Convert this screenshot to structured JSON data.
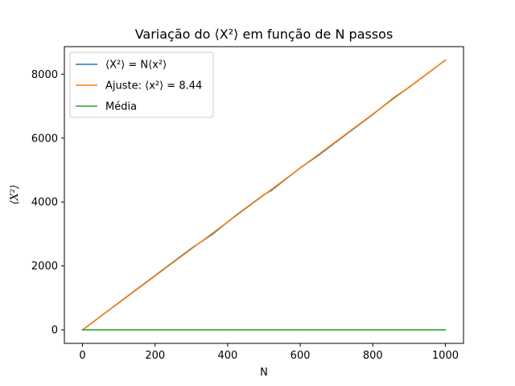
{
  "chart_data": {
    "type": "line",
    "title": "Variação do ⟨X²⟩ em função de N passos",
    "xlabel": "N",
    "ylabel": "⟨X²⟩",
    "xlim": [
      -50,
      1050
    ],
    "ylim": [
      -422,
      8862
    ],
    "xticks": [
      0,
      200,
      400,
      600,
      800,
      1000
    ],
    "yticks": [
      0,
      2000,
      4000,
      6000,
      8000
    ],
    "legend_position": "top-left",
    "grid": false,
    "series": [
      {
        "name": "⟨X²⟩ = N⟨x²⟩",
        "color": "#1f77b4",
        "x": [
          0,
          100,
          200,
          300,
          360,
          420,
          500,
          520,
          600,
          650,
          700,
          760,
          800,
          860,
          900,
          1000
        ],
        "y": [
          0,
          850,
          1700,
          2550,
          3010,
          3560,
          4230,
          4360,
          5070,
          5460,
          5890,
          6400,
          6740,
          7280,
          7590,
          8440
        ]
      },
      {
        "name": "Ajuste: ⟨x²⟩ = 8.44",
        "color": "#ff7f0e",
        "x": [
          0,
          1000
        ],
        "y": [
          0,
          8440
        ]
      },
      {
        "name": "Média",
        "color": "#2ca02c",
        "x": [
          0,
          1000
        ],
        "y": [
          0,
          0
        ]
      }
    ]
  }
}
